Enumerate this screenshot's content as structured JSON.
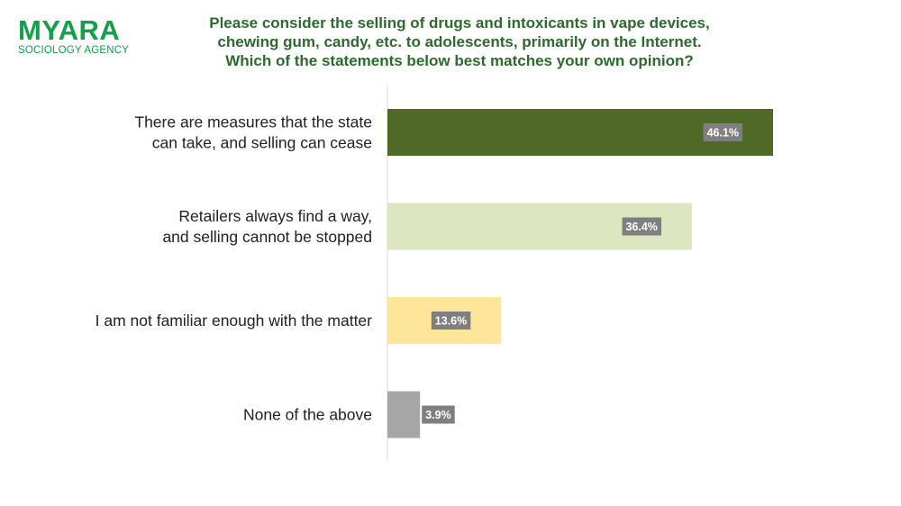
{
  "logo": {
    "name": "MYARA",
    "subtitle": "SOCIOLOGY AGENCY"
  },
  "chart_data": {
    "type": "bar",
    "orientation": "horizontal",
    "title_lines": [
      "Please consider the selling of drugs and intoxicants in vape devices,",
      "chewing gum, candy, etc. to adolescents, primarily on the Internet.",
      "Which of the statements below best matches your own opinion?"
    ],
    "categories": [
      [
        "There are measures that the state",
        "can take, and selling can cease"
      ],
      [
        "Retailers always find a way,",
        "and selling cannot be stopped"
      ],
      [
        "I am not familiar enough with the matter"
      ],
      [
        "None of the above"
      ]
    ],
    "values": [
      46.1,
      36.4,
      13.6,
      3.9
    ],
    "value_labels": [
      "46.1%",
      "36.4%",
      "13.6%",
      "3.9%"
    ],
    "colors": [
      "#4e6a26",
      "#dce6c1",
      "#fde69a",
      "#a6a6a6"
    ],
    "label_box_color": "#7f7f7f",
    "title_color": "#2d6b2d",
    "logo_color": "#12a14a",
    "unit": "%",
    "xlim": [
      0,
      46.1
    ],
    "grid": false,
    "legend": "none"
  }
}
